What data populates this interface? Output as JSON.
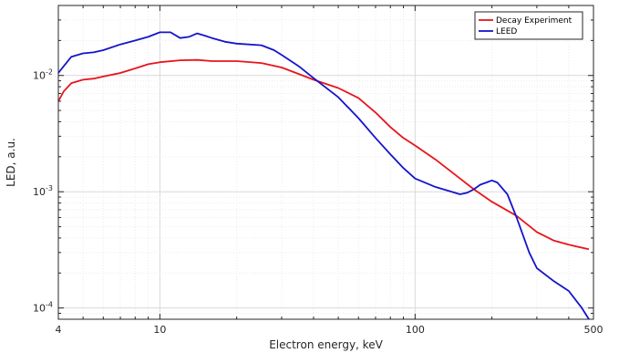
{
  "chart_data": {
    "type": "line",
    "xlabel": "Electron energy, keV",
    "ylabel": "LED, a.u.",
    "x_scale": "log",
    "y_scale": "log",
    "xlim": [
      4,
      500
    ],
    "ylim": [
      8e-05,
      0.04
    ],
    "grid": true,
    "legend_position": "top-right",
    "x_tick_labels": [
      {
        "value": 4,
        "label": "4"
      },
      {
        "value": 10,
        "label": "10"
      },
      {
        "value": 100,
        "label": "100"
      },
      {
        "value": 500,
        "label": "500"
      }
    ],
    "y_tick_labels": [
      {
        "value": 0.0001,
        "base": "10",
        "exp": "-4"
      },
      {
        "value": 0.001,
        "base": "10",
        "exp": "-3"
      },
      {
        "value": 0.01,
        "base": "10",
        "exp": "-2"
      }
    ],
    "series": [
      {
        "name": "Decay Experiment",
        "color": "#e8141c",
        "x": [
          4,
          4.2,
          4.5,
          5,
          5.5,
          6,
          7,
          8,
          9,
          10,
          12,
          14,
          16,
          20,
          25,
          30,
          35,
          40,
          50,
          60,
          70,
          80,
          90,
          100,
          120,
          150,
          170,
          200,
          250,
          300,
          350,
          400,
          480
        ],
        "y": [
          0.006,
          0.0073,
          0.0086,
          0.0092,
          0.0094,
          0.0098,
          0.0105,
          0.0115,
          0.0125,
          0.013,
          0.0135,
          0.0136,
          0.0133,
          0.0133,
          0.0128,
          0.0117,
          0.0103,
          0.0092,
          0.0078,
          0.0064,
          0.0048,
          0.0036,
          0.0029,
          0.0025,
          0.0019,
          0.0013,
          0.00105,
          0.00082,
          0.00062,
          0.00045,
          0.00038,
          0.00035,
          0.00032
        ]
      },
      {
        "name": "LEED",
        "color": "#1414cc",
        "x": [
          4,
          4.2,
          4.5,
          5,
          5.5,
          6,
          7,
          8,
          9,
          10,
          11,
          12,
          13,
          14,
          15,
          16,
          18,
          20,
          25,
          28,
          30,
          35,
          40,
          50,
          60,
          70,
          80,
          90,
          100,
          120,
          150,
          160,
          170,
          180,
          190,
          200,
          210,
          230,
          250,
          280,
          300,
          350,
          400,
          450,
          480
        ],
        "y": [
          0.0105,
          0.012,
          0.0145,
          0.0155,
          0.0158,
          0.0165,
          0.0185,
          0.02,
          0.0215,
          0.0235,
          0.0235,
          0.021,
          0.0215,
          0.023,
          0.022,
          0.021,
          0.0195,
          0.0188,
          0.0182,
          0.0165,
          0.015,
          0.012,
          0.0095,
          0.0065,
          0.0043,
          0.0029,
          0.0021,
          0.0016,
          0.0013,
          0.0011,
          0.00095,
          0.00098,
          0.00105,
          0.00115,
          0.0012,
          0.00125,
          0.0012,
          0.00095,
          0.0006,
          0.0003,
          0.00022,
          0.00017,
          0.00014,
          0.0001,
          8e-05
        ]
      }
    ]
  }
}
